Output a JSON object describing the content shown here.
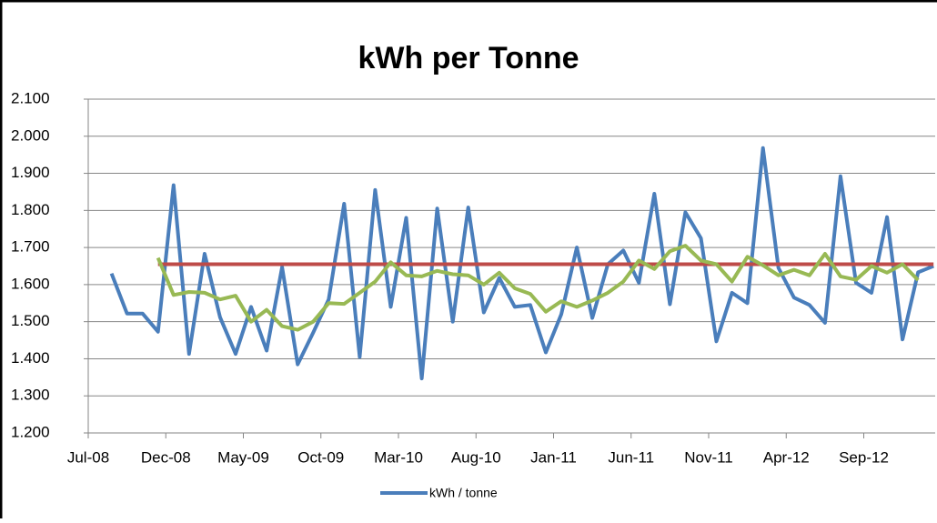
{
  "chart_data": {
    "type": "line",
    "title": "kWh per Tonne",
    "categories": [
      "Jul-08",
      null,
      null,
      null,
      null,
      "Dec-08",
      null,
      null,
      null,
      null,
      "May-09",
      null,
      null,
      null,
      null,
      "Oct-09",
      null,
      null,
      null,
      null,
      "Mar-10",
      null,
      null,
      null,
      null,
      "Aug-10",
      null,
      null,
      null,
      null,
      "Jan-11",
      null,
      null,
      null,
      null,
      "Jun-11",
      null,
      null,
      null,
      null,
      "Nov-11",
      null,
      null,
      null,
      null,
      "Apr-12",
      null,
      null,
      null,
      null,
      "Sep-12",
      null,
      null,
      null,
      null
    ],
    "series": [
      {
        "name": "kWh / tonne",
        "color": "#4a7ebb",
        "values": [
          null,
          1630,
          1522,
          1522,
          1473,
          1868,
          1413,
          1683,
          1512,
          1413,
          1540,
          1422,
          1647,
          1385,
          1470,
          1560,
          1818,
          1405,
          1855,
          1540,
          1780,
          1347,
          1805,
          1500,
          1808,
          1525,
          1618,
          1540,
          1545,
          1417,
          1520,
          1700,
          1510,
          1655,
          1692,
          1605,
          1845,
          1547,
          1795,
          1725,
          1447,
          1578,
          1550,
          1968,
          1645,
          1565,
          1545,
          1497,
          1892,
          1605,
          1578,
          1782,
          1452,
          1633,
          1650
        ]
      },
      {
        "color": "#be4b48",
        "values": [
          null,
          null,
          null,
          null,
          1655,
          1655,
          1655,
          1655,
          1655,
          1655,
          1655,
          1655,
          1655,
          1655,
          1655,
          1655,
          1655,
          1655,
          1655,
          1655,
          1655,
          1655,
          1655,
          1655,
          1655,
          1655,
          1655,
          1655,
          1655,
          1655,
          1655,
          1655,
          1655,
          1655,
          1655,
          1655,
          1655,
          1655,
          1655,
          1655,
          1655,
          1655,
          1655,
          1655,
          1655,
          1655,
          1655,
          1655,
          1655,
          1655,
          1655,
          1655,
          1655,
          1655,
          1655
        ]
      },
      {
        "color": "#98b954",
        "values": [
          null,
          null,
          null,
          null,
          1672,
          1572,
          1580,
          1578,
          1560,
          1570,
          1500,
          1532,
          1488,
          1478,
          1500,
          1550,
          1548,
          1578,
          1608,
          1660,
          1625,
          1622,
          1637,
          1628,
          1625,
          1600,
          1632,
          1590,
          1575,
          1527,
          1555,
          1540,
          1557,
          1578,
          1608,
          1665,
          1642,
          1690,
          1705,
          1665,
          1655,
          1608,
          1675,
          1652,
          1625,
          1640,
          1625,
          1683,
          1622,
          1613,
          1650,
          1632,
          1655,
          1612,
          null
        ]
      }
    ],
    "ylim": [
      1200,
      2100
    ],
    "yticks": [
      {
        "value": 1200,
        "label": "1.200"
      },
      {
        "value": 1300,
        "label": "1.300"
      },
      {
        "value": 1400,
        "label": "1.400"
      },
      {
        "value": 1500,
        "label": "1.500"
      },
      {
        "value": 1600,
        "label": "1.600"
      },
      {
        "value": 1700,
        "label": "1.700"
      },
      {
        "value": 1800,
        "label": "1.800"
      },
      {
        "value": 1900,
        "label": "1.900"
      },
      {
        "value": 2000,
        "label": "2.000"
      },
      {
        "value": 2100,
        "label": "2.100"
      }
    ],
    "grid": true,
    "legend": "bottom"
  }
}
